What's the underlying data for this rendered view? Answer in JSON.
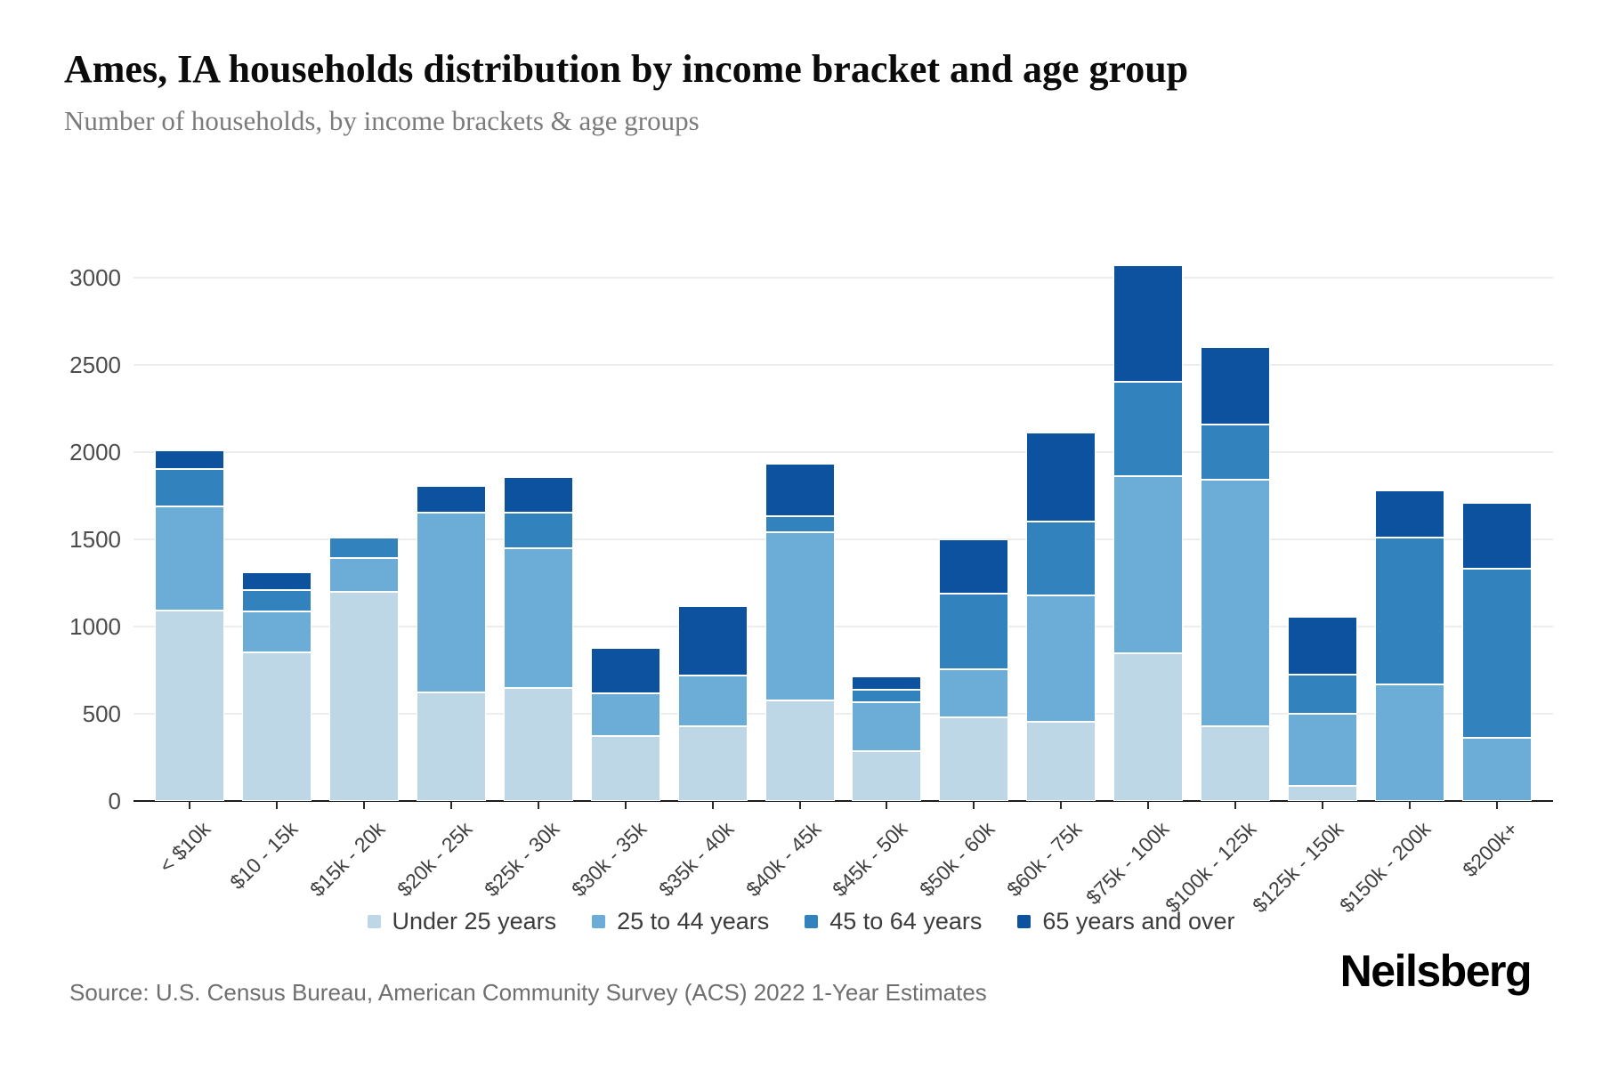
{
  "header": {
    "title": "Ames, IA households distribution by income bracket and age group",
    "subtitle": "Number of households, by income brackets & age groups"
  },
  "chart_data": {
    "type": "bar",
    "stacked": true,
    "title": "Ames, IA households distribution by income bracket and age group",
    "xlabel": "",
    "ylabel": "",
    "ylim": [
      0,
      3000
    ],
    "yticks": [
      0,
      500,
      1000,
      1500,
      2000,
      2500,
      3000
    ],
    "grid": true,
    "legend_position": "bottom",
    "categories": [
      "< $10k",
      "$10 - 15k",
      "$15k - 20k",
      "$20k - 25k",
      "$25k - 30k",
      "$30k - 35k",
      "$35k - 40k",
      "$40k - 45k",
      "$45k - 50k",
      "$50k - 60k",
      "$60k - 75k",
      "$75k - 100k",
      "$100k - 125k",
      "$125k - 150k",
      "$150k - 200k",
      "$200k+"
    ],
    "series": [
      {
        "name": "Under 25 years",
        "color": "#bdd7e7",
        "values": [
          1090,
          850,
          1200,
          625,
          650,
          370,
          430,
          575,
          285,
          480,
          455,
          845,
          430,
          85,
          0,
          0
        ]
      },
      {
        "name": "25 to 44 years",
        "color": "#6badd6",
        "values": [
          600,
          235,
          195,
          1030,
          800,
          245,
          290,
          965,
          280,
          275,
          725,
          1015,
          1410,
          415,
          670,
          360
        ]
      },
      {
        "name": "45 to 64 years",
        "color": "#3182bd",
        "values": [
          215,
          125,
          115,
          0,
          205,
          0,
          0,
          95,
          75,
          435,
          420,
          545,
          320,
          225,
          840,
          970
        ]
      },
      {
        "name": "65 years and over",
        "color": "#0c529f",
        "values": [
          105,
          100,
          0,
          150,
          200,
          265,
          395,
          300,
          75,
          310,
          510,
          665,
          440,
          330,
          270,
          380
        ]
      }
    ]
  },
  "footer": {
    "source": "Source: U.S. Census Bureau, American Community Survey (ACS) 2022 1-Year Estimates",
    "logo": "Neilsberg"
  }
}
